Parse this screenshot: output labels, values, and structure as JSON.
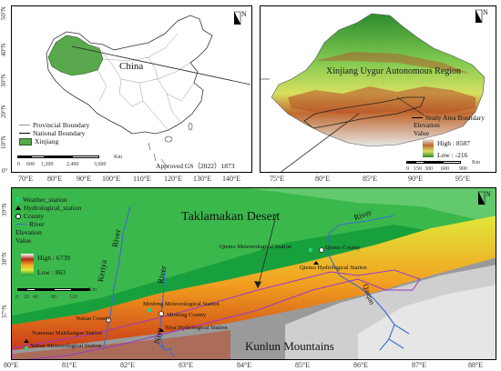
{
  "panel_a": {
    "country_label": "China",
    "lat_ticks": [
      "50°N",
      "40°N",
      "30°N",
      "20°N",
      "10°N",
      "0°"
    ],
    "lon_ticks": [
      "70°E",
      "80°E",
      "90°E",
      "100°E",
      "110°E",
      "120°E",
      "130°E",
      "140°E"
    ],
    "legend": {
      "provincial_boundary": "Provincial Boundary",
      "national_boundary": "National Boundary",
      "xinjiang": "Xinjiang"
    },
    "scale": {
      "ticks": [
        "0",
        "600",
        "1,200",
        "2,400",
        "3,600"
      ],
      "unit": "Km"
    },
    "approval": "Approved GS（2022）1873",
    "north": "N",
    "colors": {
      "xinjiang": "#5aa84d"
    }
  },
  "panel_b": {
    "title": "Xinjiang Uygur Autonomous Region",
    "lon_ticks": [
      "75°E",
      "80°E",
      "85°E",
      "90°E",
      "95°E"
    ],
    "legend": {
      "study_area": "Study Area Boundary",
      "elevation": "Elevation",
      "value": "Value",
      "high": "High : 8587",
      "low": "Low : -216"
    },
    "scale": {
      "ticks": [
        "0",
        "150",
        "300",
        "600",
        "900"
      ],
      "unit": "Km"
    },
    "north": "N"
  },
  "panel_c": {
    "desert_label": "Taklamakan Desert",
    "mountains_label": "Kunlun Mountains",
    "lat_ticks": [
      "39°N",
      "38°N",
      "37°N"
    ],
    "lon_ticks": [
      "80°E",
      "81°E",
      "82°E",
      "83°E",
      "84°E",
      "85°E",
      "86°E",
      "87°E",
      "88°E"
    ],
    "legend": {
      "weather_station": "Weather_station",
      "hydrological_station": "Hydrological_station",
      "county": "County",
      "river": "River",
      "elevation": "Elevation",
      "value": "Value",
      "high": "High : 6739",
      "low": "Low : 863"
    },
    "scale": {
      "ticks": [
        "0",
        "20",
        "40",
        "80",
        "120"
      ],
      "unit": "Km"
    },
    "rivers": {
      "keriya": "Keriya",
      "niya": "Niya",
      "river_mid": "River",
      "river_mid2": "River",
      "river_east": "River",
      "qarqan": "Qarqan"
    },
    "places": {
      "qiemo_met": "Qiemo Meteorological Station",
      "qiemo_county": "Qiemo County",
      "qiemo_hydro": "Qiemo Hydrological Station",
      "minfeng_met": "Minfeng Meteorological Station",
      "minfeng_county": "Minfeng County",
      "niya_hydro": "Niya Hydrological Station",
      "yutian_county": "Yutian County",
      "nunumai": "Nunumai Maitilangan Station",
      "yutian_met": "Yutian Meteorological Station"
    },
    "north": "N"
  }
}
